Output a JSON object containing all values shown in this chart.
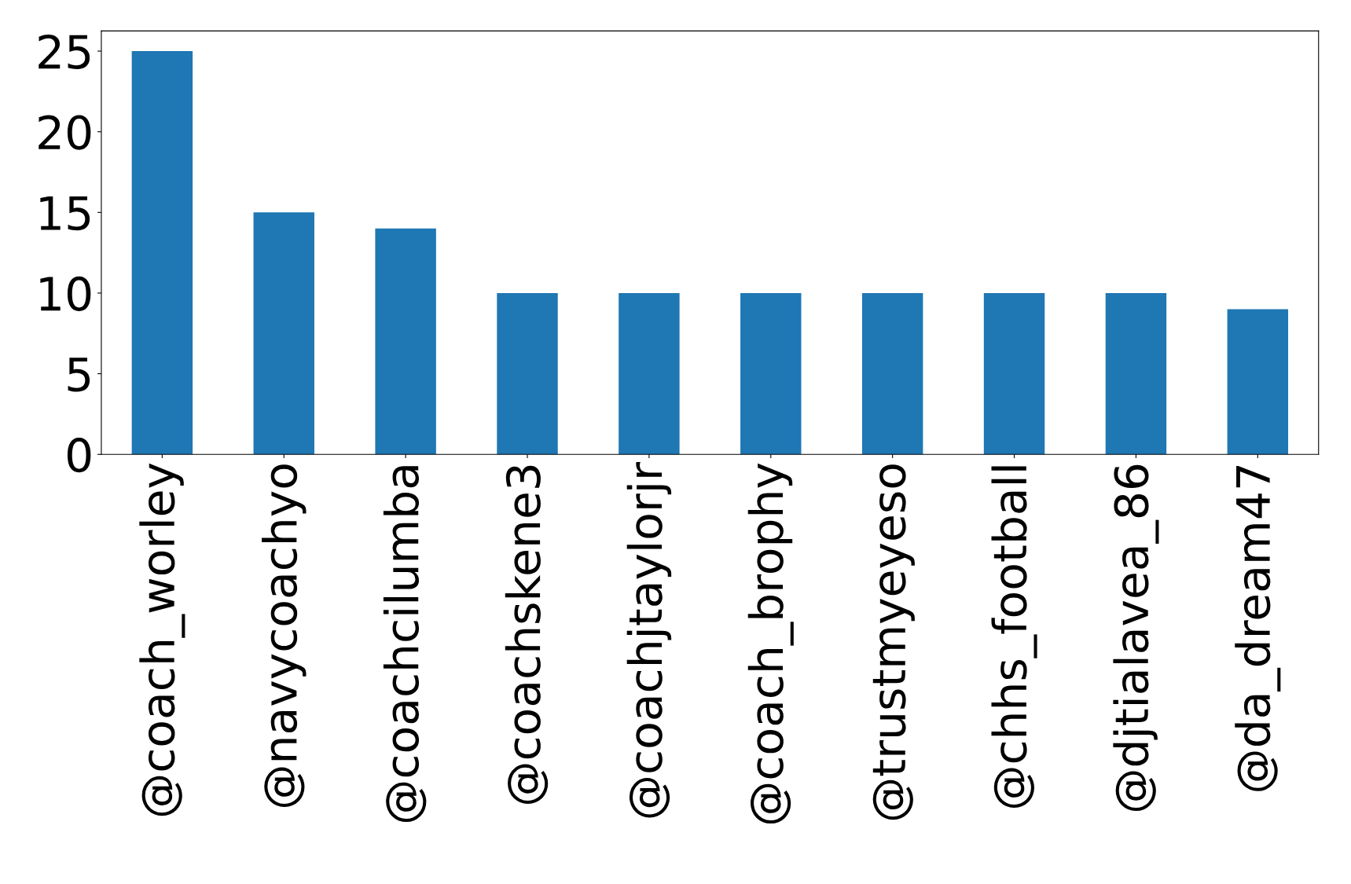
{
  "chart_data": {
    "type": "bar",
    "categories": [
      "@coach_worley",
      "@navycoachyo",
      "@coachcilumba",
      "@coachskene3",
      "@coachjtaylorjr",
      "@coach_brophy",
      "@trustmyeyeso",
      "@chhs_football",
      "@djtialavea_86",
      "@da_dream47"
    ],
    "values": [
      25,
      15,
      14,
      10,
      10,
      10,
      10,
      10,
      10,
      9
    ],
    "color": "#1f77b4",
    "ylim": [
      0,
      26.25
    ],
    "yticks": [
      0,
      5,
      10,
      15,
      20,
      25
    ],
    "grid": false
  }
}
